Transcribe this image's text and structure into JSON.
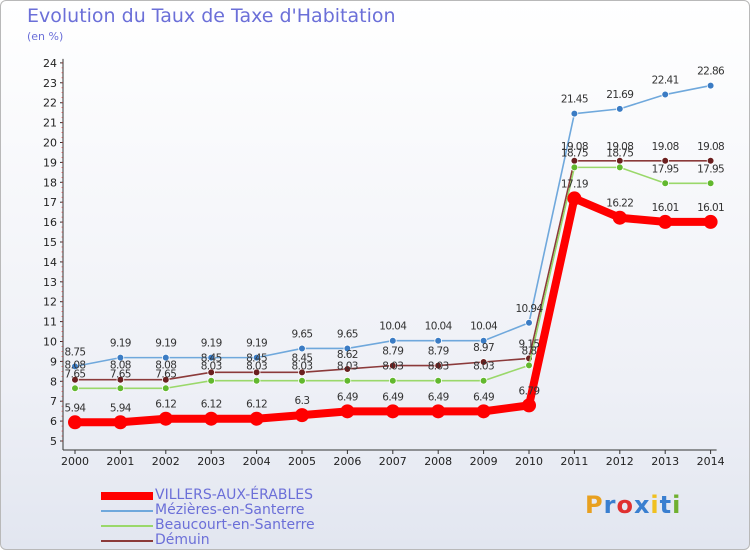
{
  "title": "Evolution du Taux de Taxe d'Habitation",
  "unit_label": "(en %)",
  "logo": {
    "text": "Proxiti",
    "letter_colors": [
      "#e8a020",
      "#3a7fd0",
      "#e03030",
      "#3a7fd0",
      "#f0c020",
      "#3a7fd0",
      "#70b030"
    ]
  },
  "chart_data": {
    "type": "line",
    "title": "Evolution du Taux de Taxe d'Habitation",
    "ylabel": "(en %)",
    "xlabel": "",
    "ylim": [
      5,
      24
    ],
    "x": [
      "2000",
      "2001",
      "2002",
      "2003",
      "2004",
      "2005",
      "2006",
      "2007",
      "2008",
      "2009",
      "2010",
      "2011",
      "2012",
      "2013",
      "2014"
    ],
    "yticks": [
      "5",
      "6",
      "7",
      "8",
      "9",
      "10",
      "11",
      "12",
      "13",
      "14",
      "15",
      "16",
      "17",
      "18",
      "19",
      "20",
      "21",
      "22",
      "23",
      "24"
    ],
    "grid": false,
    "legend_position": "bottom-left",
    "series": [
      {
        "name": "Mézières-en-Santerre",
        "color": "#6fa8dc",
        "marker": "#3b7cc4",
        "emphasis": false,
        "values": [
          8.75,
          9.19,
          9.19,
          9.19,
          9.19,
          9.65,
          9.65,
          10.04,
          10.04,
          10.04,
          10.94,
          21.45,
          21.69,
          22.41,
          22.86
        ],
        "labels": [
          "8.75",
          "9.19",
          "9.19",
          "9.19",
          "9.19",
          "9.65",
          "9.65",
          "10.04",
          "10.04",
          "10.04",
          "10.94",
          "21.45",
          "21.69",
          "22.41",
          "22.86"
        ]
      },
      {
        "name": "Démuin",
        "color": "#8b3a3a",
        "marker": "#6b1f1f",
        "emphasis": false,
        "values": [
          8.08,
          8.08,
          8.08,
          8.45,
          8.45,
          8.45,
          8.62,
          8.79,
          8.79,
          8.97,
          9.15,
          19.08,
          19.08,
          19.08,
          19.08
        ],
        "labels": [
          "8.08",
          "8.08",
          "8.08",
          "8.45",
          "8.45",
          "8.45",
          "8.62",
          "8.79",
          "8.79",
          "8.97",
          "9.15",
          "19.08",
          "19.08",
          "19.08",
          "19.08"
        ]
      },
      {
        "name": "Beaucourt-en-Santerre",
        "color": "#9ad86a",
        "marker": "#62b82e",
        "emphasis": false,
        "values": [
          7.65,
          7.65,
          7.65,
          8.03,
          8.03,
          8.03,
          8.03,
          8.03,
          8.03,
          8.03,
          8.8,
          18.75,
          18.75,
          17.95,
          17.95
        ],
        "labels": [
          "7.65",
          "7.65",
          "7.65",
          "8.03",
          "8.03",
          "8.03",
          "8.03",
          "8.03",
          "8.03",
          "8.03",
          "8.8",
          "18.75",
          "18.75",
          "17.95",
          "17.95"
        ]
      },
      {
        "name": "VILLERS-AUX-ÉRABLES",
        "color": "#ff0000",
        "marker": "#ff0000",
        "emphasis": true,
        "values": [
          5.94,
          5.94,
          6.12,
          6.12,
          6.12,
          6.3,
          6.49,
          6.49,
          6.49,
          6.49,
          6.79,
          17.19,
          16.22,
          16.01,
          16.01
        ],
        "labels": [
          "5.94",
          "5.94",
          "6.12",
          "6.12",
          "6.12",
          "6.3",
          "6.49",
          "6.49",
          "6.49",
          "6.49",
          "6.79",
          "17.19",
          "16.22",
          "16.01",
          "16.01"
        ]
      }
    ],
    "legend_order": [
      "VILLERS-AUX-ÉRABLES",
      "Mézières-en-Santerre",
      "Beaucourt-en-Santerre",
      "Démuin"
    ]
  }
}
